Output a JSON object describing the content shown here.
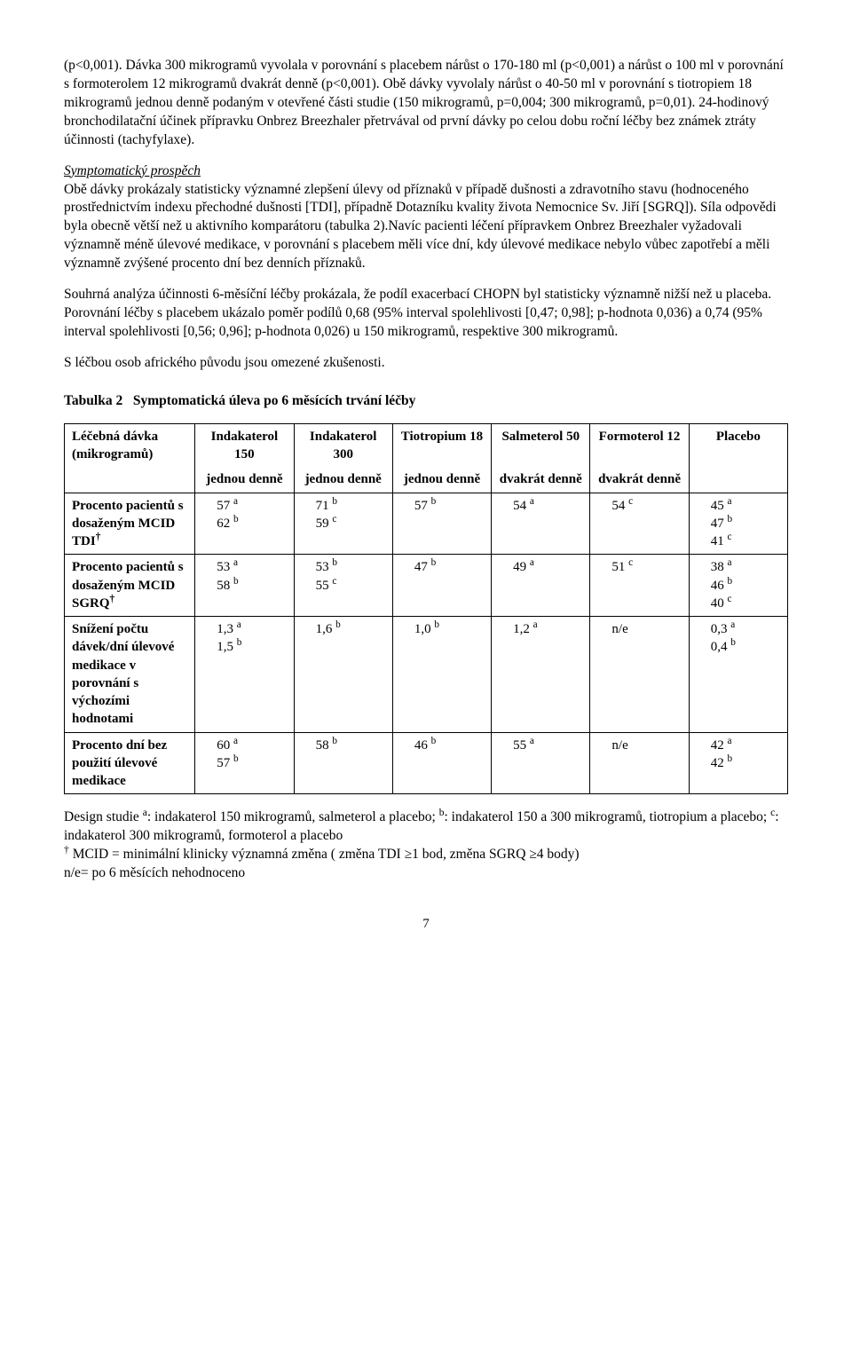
{
  "paragraphs": {
    "p1": "(p<0,001). Dávka 300 mikrogramů vyvolala v porovnání s placebem nárůst o 170-180 ml (p<0,001) a nárůst o 100 ml v porovnání s formoterolem 12 mikrogramů dvakrát denně (p<0,001). Obě dávky vyvolaly nárůst o 40-50 ml v porovnání s tiotropiem 18 mikrogramů jednou denně podaným v otevřené části studie (150 mikrogramů, p=0,004; 300 mikrogramů, p=0,01). 24-hodinový bronchodilatační účinek přípravku Onbrez Breezhaler přetrvával od první dávky po celou dobu roční léčby bez známek ztráty účinnosti (tachyfylaxe).",
    "p2_head": "Symptomatický prospěch",
    "p2": "Obě dávky prokázaly statisticky významné zlepšení úlevy od příznaků v případě dušnosti a zdravotního stavu (hodnoceného prostřednictvím indexu přechodné dušnosti [TDI], případně Dotazníku kvality života Nemocnice Sv. Jiří [SGRQ]). Síla odpovědi byla obecně větší než u aktivního komparátoru (tabulka 2).Navíc pacienti léčení přípravkem Onbrez Breezhaler vyžadovali významně méně úlevové medikace, v porovnání s placebem měli více dní, kdy úlevové medikace nebylo vůbec zapotřebí a měli významně zvýšené procento dní bez denních příznaků.",
    "p3": "Souhrná analýza účinnosti 6-měsíční léčby prokázala, že podíl exacerbací CHOPN byl statisticky významně nižší než u placeba. Porovnání léčby s placebem ukázalo poměr podílů 0,68 (95% interval spolehlivosti [0,47; 0,98]; p-hodnota 0,036) a 0,74 (95% interval spolehlivosti [0,56; 0,96]; p-hodnota 0,026) u 150 mikrogramů, respektive 300 mikrogramů.",
    "p4": "S léčbou osob afrického původu jsou omezené zkušenosti.",
    "table_title": "Tabulka 2   Symptomatická úleva po 6 měsících trvání léčby"
  },
  "table": {
    "row_header_label": "Léčebná dávka (mikrogramů)",
    "columns": [
      {
        "h1": "Indakaterol 150",
        "h2": "jednou denně"
      },
      {
        "h1": "Indakaterol 300",
        "h2": "jednou denně"
      },
      {
        "h1": "Tiotropium 18",
        "h2": "jednou denně"
      },
      {
        "h1": "Salmeterol 50",
        "h2": "dvakrát denně"
      },
      {
        "h1": "Formoterol 12",
        "h2": "dvakrát denně"
      },
      {
        "h1": "Placebo",
        "h2": ""
      }
    ],
    "rows": [
      {
        "label": "Procento pacientů s dosaženým MCID TDI",
        "dagger": true,
        "cells": [
          [
            {
              "v": "57",
              "s": "a"
            },
            {
              "v": "62",
              "s": "b"
            }
          ],
          [
            {
              "v": "71",
              "s": "b"
            },
            {
              "v": "59",
              "s": "c"
            }
          ],
          [
            {
              "v": "57",
              "s": "b"
            }
          ],
          [
            {
              "v": "54",
              "s": "a"
            }
          ],
          [
            {
              "v": "54",
              "s": "c"
            }
          ],
          [
            {
              "v": "45",
              "s": "a"
            },
            {
              "v": "47",
              "s": "b"
            },
            {
              "v": "41",
              "s": "c"
            }
          ]
        ]
      },
      {
        "label": "Procento pacientů s dosaženým MCID SGRQ",
        "dagger": true,
        "cells": [
          [
            {
              "v": "53",
              "s": "a"
            },
            {
              "v": "58",
              "s": "b"
            }
          ],
          [
            {
              "v": "53",
              "s": "b"
            },
            {
              "v": "55",
              "s": "c"
            }
          ],
          [
            {
              "v": "47",
              "s": "b"
            }
          ],
          [
            {
              "v": "49",
              "s": "a"
            }
          ],
          [
            {
              "v": "51",
              "s": "c"
            }
          ],
          [
            {
              "v": "38",
              "s": "a"
            },
            {
              "v": "46",
              "s": "b"
            },
            {
              "v": "40",
              "s": "c"
            }
          ]
        ]
      },
      {
        "label": "Snížení počtu dávek/dní úlevové medikace v porovnání s výchozími hodnotami",
        "dagger": false,
        "cells": [
          [
            {
              "v": "1,3",
              "s": "a"
            },
            {
              "v": "1,5",
              "s": "b"
            }
          ],
          [
            {
              "v": "1,6",
              "s": "b"
            }
          ],
          [
            {
              "v": "1,0",
              "s": "b"
            }
          ],
          [
            {
              "v": "1,2",
              "s": "a"
            }
          ],
          [
            {
              "v": "n/e",
              "s": ""
            }
          ],
          [
            {
              "v": "0,3",
              "s": "a"
            },
            {
              "v": "0,4",
              "s": "b"
            }
          ]
        ]
      },
      {
        "label": "Procento dní bez použití úlevové medikace",
        "dagger": false,
        "cells": [
          [
            {
              "v": "60",
              "s": "a"
            },
            {
              "v": "57",
              "s": "b"
            }
          ],
          [
            {
              "v": "58",
              "s": "b"
            }
          ],
          [
            {
              "v": "46",
              "s": "b"
            }
          ],
          [
            {
              "v": "55",
              "s": "a"
            }
          ],
          [
            {
              "v": "n/e",
              "s": ""
            }
          ],
          [
            {
              "v": "42",
              "s": "a"
            },
            {
              "v": "42",
              "s": "b"
            }
          ]
        ]
      }
    ]
  },
  "footnotes": {
    "f1_pre": "Design studie ",
    "f1_a": ": indakaterol 150 mikrogramů, salmeterol a placebo; ",
    "f1_b": ": indakaterol 150 a 300 mikrogramů, tiotropium a placebo; ",
    "f1_c": ": indakaterol 300 mikrogramů, formoterol a placebo",
    "f2": " MCID = minimální klinicky významná změna ( změna TDI ≥1 bod, změna SGRQ ≥4 body)",
    "f3": "n/e= po 6 měsících nehodnoceno"
  },
  "page_number": "7"
}
